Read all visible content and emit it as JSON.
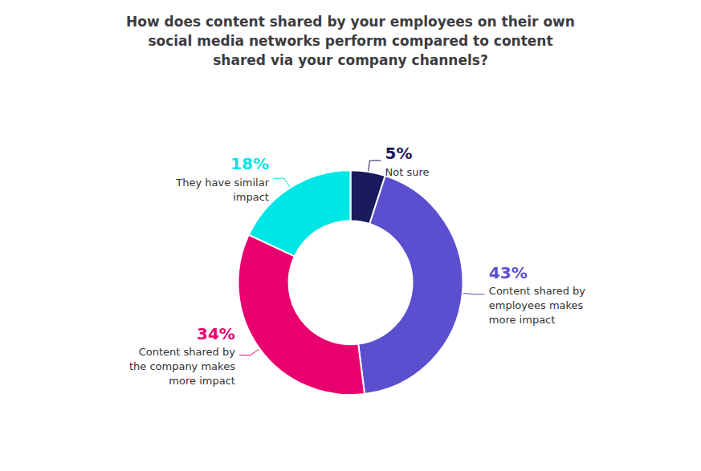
{
  "chart_data": {
    "type": "donut",
    "title": "How does content shared by your employees on their own\nsocial media networks perform compared to content\nshared via your company channels?",
    "categories": [
      "Not sure",
      "Content shared by\nemployees makes\nmore impact",
      "Content shared by\nthe company makes\nmore impact",
      "They have similar\nimpact"
    ],
    "values": [
      5,
      43,
      34,
      18
    ],
    "value_labels": [
      "5%",
      "43%",
      "34%",
      "18%"
    ],
    "colors": [
      "#1a1a5e",
      "#5b4fcf",
      "#e8006e",
      "#00e5e5"
    ],
    "data_labels": true
  }
}
